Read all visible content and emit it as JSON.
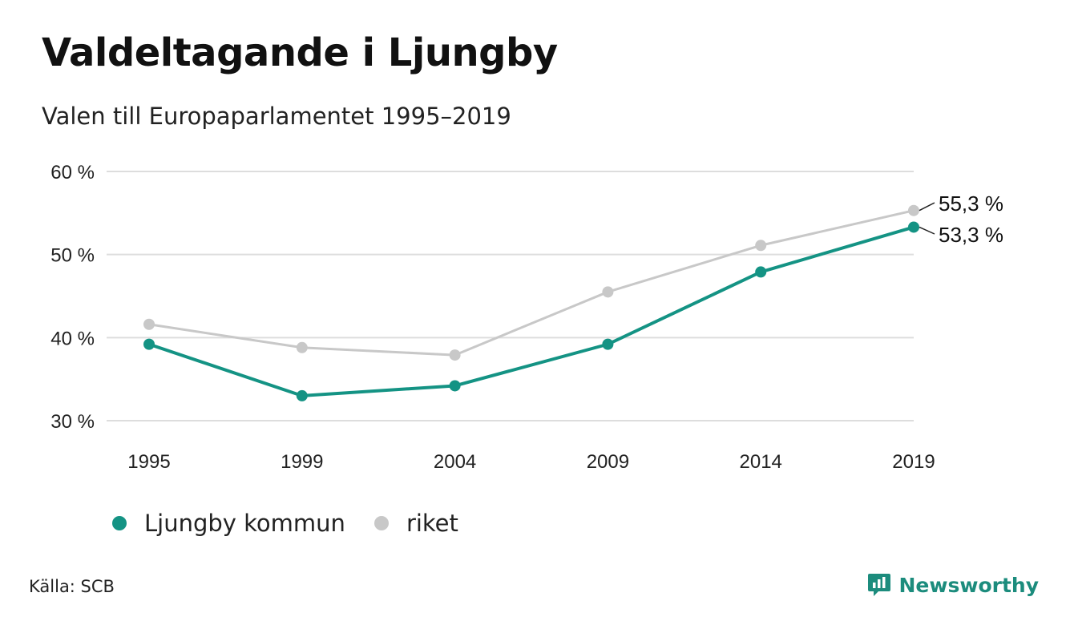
{
  "header": {
    "title": "Valdeltagande i Ljungby",
    "subtitle": "Valen till Europaparlamentet 1995–2019"
  },
  "colors": {
    "ljungby": "#149384",
    "riket": "#c8c8c8",
    "grid": "#dddddd",
    "brand": "#1c8c7d"
  },
  "chart_data": {
    "type": "line",
    "categories": [
      "1995",
      "1999",
      "2004",
      "2009",
      "2014",
      "2019"
    ],
    "series": [
      {
        "name": "Ljungby kommun",
        "values": [
          39.2,
          33.0,
          34.2,
          39.2,
          47.9,
          53.3
        ]
      },
      {
        "name": "riket",
        "values": [
          41.6,
          38.8,
          37.9,
          45.5,
          51.1,
          55.3
        ]
      }
    ],
    "ylim": [
      30,
      60
    ],
    "yticks": [
      30,
      40,
      50,
      60
    ],
    "ytick_labels": [
      "30 %",
      "40 %",
      "50 %",
      "60 %"
    ],
    "end_labels": [
      "53,3 %",
      "55,3 %"
    ],
    "grid": true,
    "legend": "bottom-left",
    "xlabel": "",
    "ylabel": ""
  },
  "legend": {
    "items": [
      {
        "label": "Ljungby kommun"
      },
      {
        "label": "riket"
      }
    ]
  },
  "footer": {
    "source": "Källa: SCB",
    "brand": "Newsworthy",
    "brand_icon": "newsworthy-logo-icon"
  }
}
